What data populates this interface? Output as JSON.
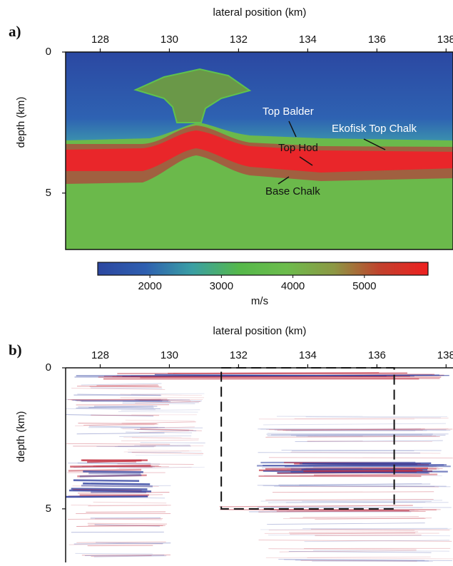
{
  "chart_data": [
    {
      "type": "velocity-model",
      "panel_label": "a)",
      "xlabel": "lateral position (km)",
      "ylabel": "depth (km)",
      "xlim": [
        127,
        138.2
      ],
      "xticks": [
        128,
        130,
        132,
        134,
        136,
        138
      ],
      "ylim": [
        0,
        7
      ],
      "yticks": [
        0,
        5
      ],
      "colorbar": {
        "label": "m/s",
        "lim": [
          1270,
          5890
        ],
        "ticks": [
          2000,
          3000,
          4000,
          5000
        ],
        "colors": [
          "#2c47a0",
          "#2e5fb0",
          "#3a9fa4",
          "#55b84a",
          "#6cbc4c",
          "#8c9844",
          "#c2402c",
          "#ee2020"
        ]
      },
      "annotations": [
        "Top Balder",
        "Ekofisk Top Chalk",
        "Top Hod",
        "Base Chalk"
      ]
    },
    {
      "type": "seismic-image",
      "panel_label": "b)",
      "xlabel": "lateral position (km)",
      "ylabel": "depth (km)",
      "xlim": [
        127,
        138.2
      ],
      "xticks": [
        128,
        130,
        132,
        134,
        136,
        138
      ],
      "ylim": [
        0,
        6.9
      ],
      "yticks": [
        0,
        5
      ],
      "box": {
        "x": [
          131.5,
          136.5
        ],
        "y": [
          0,
          5
        ]
      }
    }
  ]
}
